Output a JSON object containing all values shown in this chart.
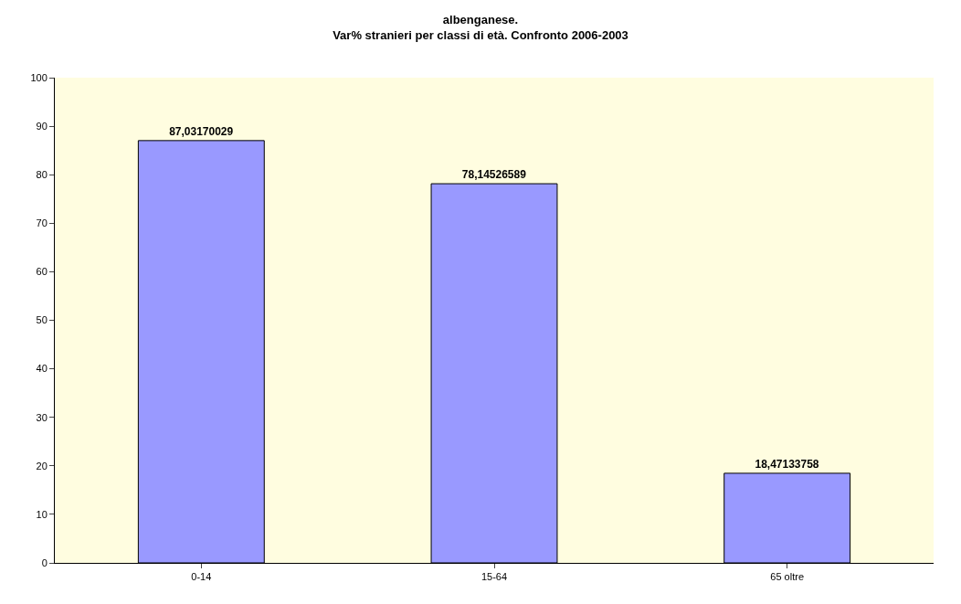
{
  "chart_data": {
    "type": "bar",
    "title": "albenganese.\nVar% stranieri per classi di età. Confronto 2006-2003",
    "categories": [
      "0-14",
      "15-64",
      "65 oltre"
    ],
    "values": [
      87.03170029,
      78.14526589,
      18.47133758
    ],
    "value_labels": [
      "87,03170029",
      "78,14526589",
      "18,47133758"
    ],
    "color": "#9999ff",
    "ylim": [
      0,
      100
    ],
    "yticks": [
      0,
      10,
      20,
      30,
      40,
      50,
      60,
      70,
      80,
      90,
      100
    ],
    "grid": false,
    "legend": false
  }
}
